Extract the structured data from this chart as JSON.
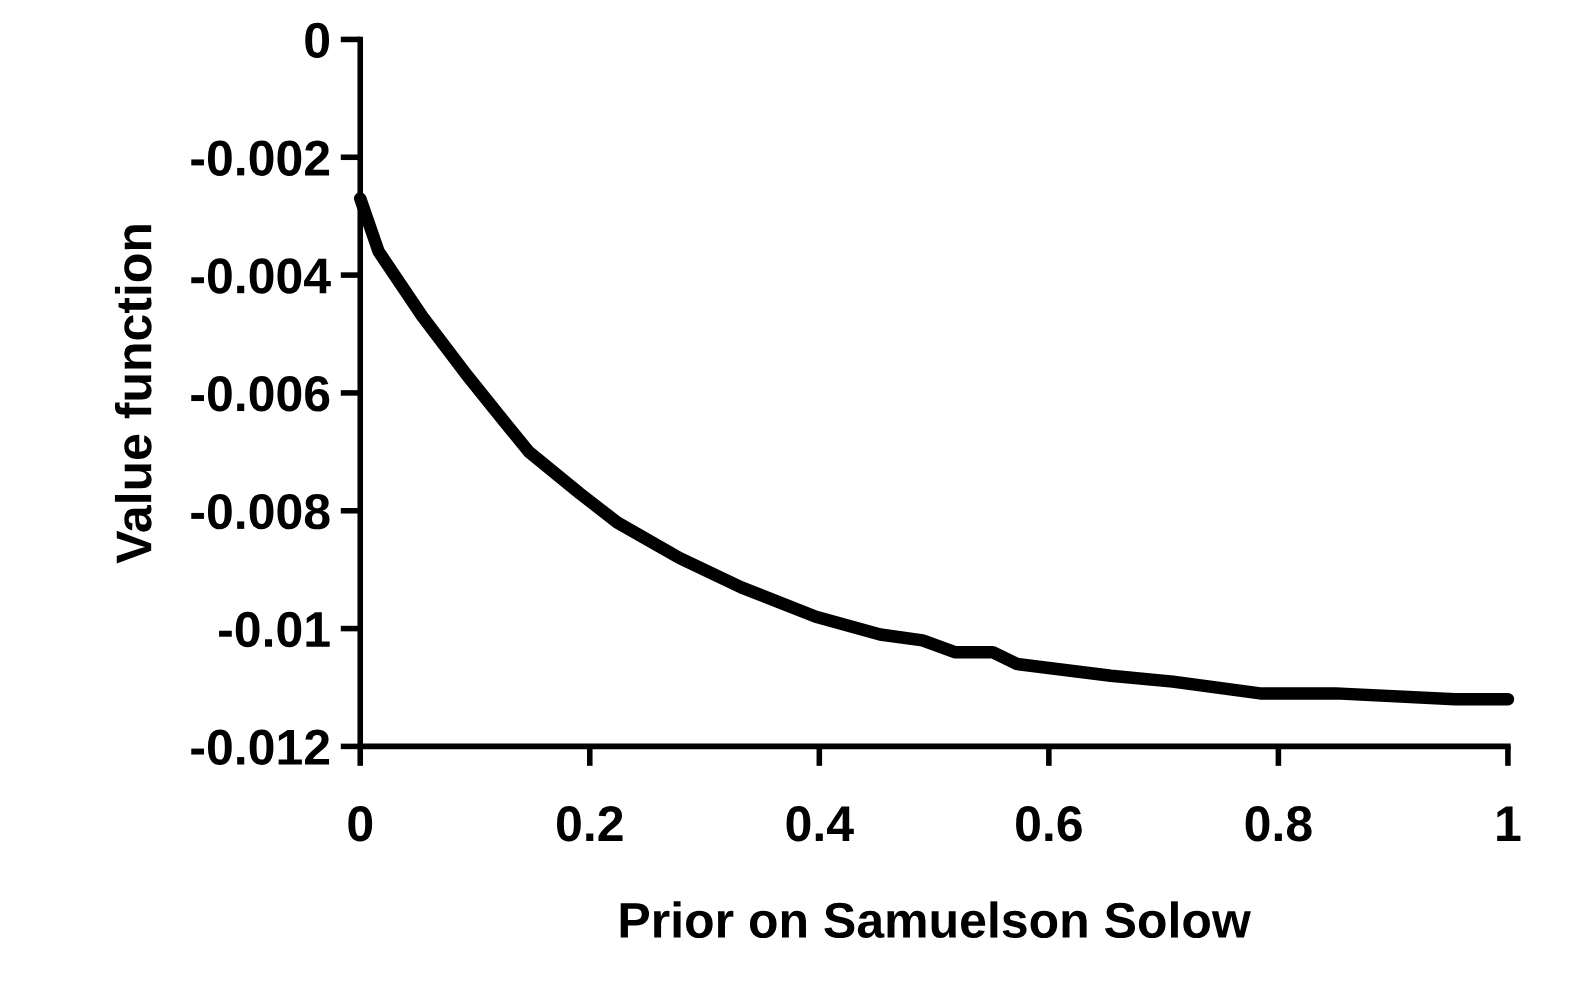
{
  "chart_data": {
    "type": "line",
    "xlabel": "Prior on Samuelson Solow",
    "ylabel": "Value function",
    "x": [
      0,
      0.016,
      0.054,
      0.093,
      0.126,
      0.147,
      0.191,
      0.224,
      0.278,
      0.332,
      0.397,
      0.453,
      0.49,
      0.518,
      0.551,
      0.572,
      0.654,
      0.708,
      0.784,
      0.85,
      0.954,
      1.0
    ],
    "series": [
      {
        "color": "#000000",
        "values": [
          -0.0027,
          -0.0036,
          -0.0047,
          -0.0057,
          -0.0065,
          -0.007,
          -0.0077,
          -0.0082,
          -0.0088,
          -0.0093,
          -0.0098,
          -0.0101,
          -0.0102,
          -0.0104,
          -0.0104,
          -0.0106,
          -0.0108,
          -0.0109,
          -0.0111,
          -0.0111,
          -0.0112,
          -0.0112
        ]
      }
    ],
    "xlim": [
      0,
      1
    ],
    "ylim": [
      -0.012,
      0
    ],
    "xticks": [
      0,
      0.2,
      0.4,
      0.6,
      0.8,
      1
    ],
    "yticks": [
      -0.012,
      -0.01,
      -0.008,
      -0.006,
      -0.004,
      -0.002,
      0
    ],
    "grid": false,
    "legend": false,
    "marker": "none",
    "line_style": "solid"
  }
}
